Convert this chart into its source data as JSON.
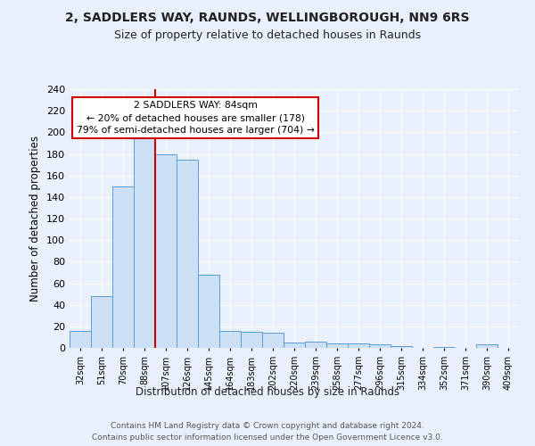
{
  "title1": "2, SADDLERS WAY, RAUNDS, WELLINGBOROUGH, NN9 6RS",
  "title2": "Size of property relative to detached houses in Raunds",
  "xlabel": "Distribution of detached houses by size in Raunds",
  "ylabel": "Number of detached properties",
  "categories": [
    "32sqm",
    "51sqm",
    "70sqm",
    "88sqm",
    "107sqm",
    "126sqm",
    "145sqm",
    "164sqm",
    "183sqm",
    "202sqm",
    "220sqm",
    "239sqm",
    "258sqm",
    "277sqm",
    "296sqm",
    "315sqm",
    "334sqm",
    "352sqm",
    "371sqm",
    "390sqm",
    "409sqm"
  ],
  "values": [
    16,
    48,
    150,
    205,
    180,
    175,
    68,
    16,
    15,
    14,
    5,
    6,
    4,
    4,
    3,
    2,
    0,
    1,
    0,
    3,
    0
  ],
  "bar_color": "#cce0f5",
  "bar_edge_color": "#5b9bd5",
  "background_color": "#eaf0fb",
  "grid_color": "#ffffff",
  "vline_x": 3.5,
  "vline_color": "#cc0000",
  "annotation_text": "2 SADDLERS WAY: 84sqm\n← 20% of detached houses are smaller (178)\n79% of semi-detached houses are larger (704) →",
  "annotation_box_color": "#ffffff",
  "annotation_box_edge": "#cc0000",
  "footer1": "Contains HM Land Registry data © Crown copyright and database right 2024.",
  "footer2": "Contains public sector information licensed under the Open Government Licence v3.0.",
  "ylim": [
    0,
    240
  ],
  "yticks": [
    0,
    20,
    40,
    60,
    80,
    100,
    120,
    140,
    160,
    180,
    200,
    220,
    240
  ]
}
